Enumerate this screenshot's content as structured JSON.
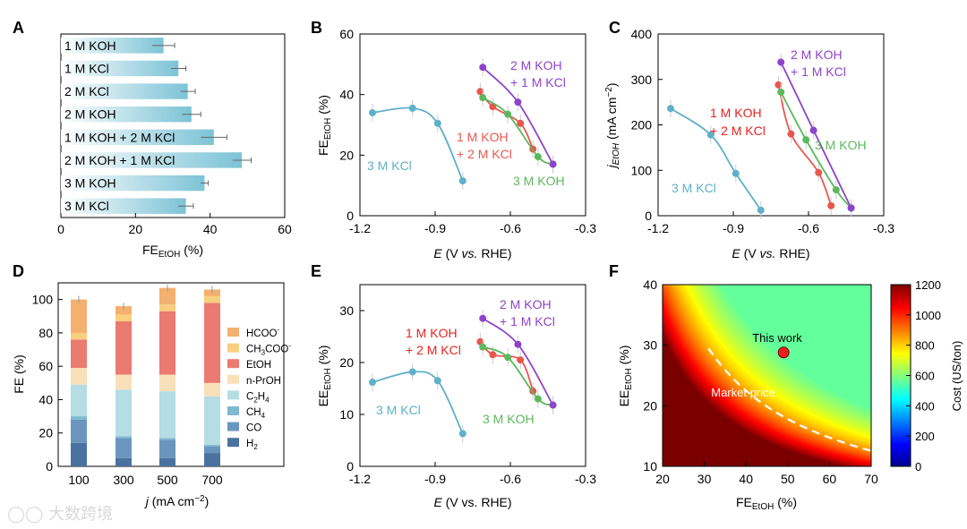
{
  "panels": {
    "A": {
      "letter": "A",
      "type": "bar",
      "categories": [
        "1 M KOH",
        "1 M KCl",
        "2 M KCl",
        "2 M KOH",
        "1 M KOH + 2 M KCl",
        "2 M KOH + 1 M KCl",
        "3 M KOH",
        "3 M KCl"
      ],
      "values": [
        27.5,
        31.5,
        34,
        35,
        41,
        48.5,
        38.5,
        33.5
      ],
      "errors": [
        3,
        2,
        2,
        2.5,
        3.5,
        2.5,
        1,
        2
      ],
      "xlim": [
        0,
        60
      ],
      "xticks": [
        "0",
        "20",
        "40",
        "60"
      ],
      "xlabel": "FE",
      "xlabel_sub": "EtOH",
      "xlabel_unit": " (%)"
    },
    "B": {
      "letter": "B",
      "type": "line",
      "xlim": [
        -1.2,
        -0.3
      ],
      "ylim": [
        0,
        60
      ],
      "xticks": [
        "-1.2",
        "-0.9",
        "-0.6",
        "-0.3"
      ],
      "yticks": [
        "0",
        "20",
        "40",
        "60"
      ],
      "ylabel": "FE",
      "ylabel_sub": "EtOH",
      "ylabel_unit": " (%)",
      "xlabel_e": "E",
      "xlabel_rest": " (V ",
      "xlabel_vs": "vs.",
      "xlabel_end": " RHE)",
      "series": [
        {
          "name": "3 M KCl",
          "color": "#5fb0c9",
          "x": [
            -1.15,
            -0.99,
            -0.89,
            -0.79
          ],
          "y": [
            34,
            35.5,
            30.5,
            11.5
          ]
        },
        {
          "name": "1 M KOH + 2 M KCl",
          "color": "#e8574e",
          "x": [
            -0.72,
            -0.67,
            -0.56,
            -0.51
          ],
          "y": [
            41,
            36,
            30.5,
            22
          ]
        },
        {
          "name": "3 M KOH",
          "color": "#5cb85c",
          "x": [
            -0.71,
            -0.61,
            -0.49,
            -0.43
          ],
          "y": [
            39,
            33.5,
            19.5,
            17
          ]
        },
        {
          "name": "2 M KOH + 1 M KCl",
          "color": "#8e44c9",
          "x": [
            -0.71,
            -0.57,
            -0.43
          ],
          "y": [
            49,
            37.5,
            17
          ]
        }
      ],
      "labels": {
        "kcl": "3 M KCl",
        "mix1a": "1 M KOH",
        "mix1b": "+ 2 M KCl",
        "koh": "3 M KOH",
        "mix2a": "2 M KOH",
        "mix2b": "+ 1 M KCl"
      }
    },
    "C": {
      "letter": "C",
      "type": "line",
      "xlim": [
        -1.2,
        -0.3
      ],
      "ylim": [
        0,
        400
      ],
      "xticks": [
        "-1.2",
        "-0.9",
        "-0.6",
        "-0.3"
      ],
      "yticks": [
        "0",
        "100",
        "200",
        "300",
        "400"
      ],
      "ylabel_j": "j",
      "ylabel_sub": "EtOH",
      "ylabel_unit": " (mA cm",
      "ylabel_sup": "−2",
      "ylabel_end": ")",
      "xlabel_e": "E",
      "xlabel_rest": " (V ",
      "xlabel_vs": "vs.",
      "xlabel_end": " RHE)",
      "series": [
        {
          "name": "3 M KCl",
          "color": "#5fb0c9",
          "x": [
            -1.15,
            -0.99,
            -0.89,
            -0.79
          ],
          "y": [
            236,
            178,
            93,
            12
          ]
        },
        {
          "name": "1 M KOH + 2 M KCl",
          "color": "#e8574e",
          "x": [
            -0.72,
            -0.67,
            -0.56,
            -0.51
          ],
          "y": [
            288,
            180,
            95,
            22
          ]
        },
        {
          "name": "3 M KOH",
          "color": "#5cb85c",
          "x": [
            -0.71,
            -0.61,
            -0.49,
            -0.43
          ],
          "y": [
            272,
            167,
            57,
            17
          ]
        },
        {
          "name": "2 M KOH + 1 M KCl",
          "color": "#8e44c9",
          "x": [
            -0.71,
            -0.58,
            -0.43
          ],
          "y": [
            338,
            188,
            17
          ]
        }
      ],
      "labels": {
        "kcl": "3 M KCl",
        "mix1a": "1 M KOH",
        "mix1b": "+ 2 M KCl",
        "koh": "3 M KOH",
        "mix2a": "2 M KOH",
        "mix2b": "+ 1 M KCl"
      }
    },
    "D": {
      "letter": "D",
      "type": "bar",
      "categories": [
        "100",
        "300",
        "500",
        "700"
      ],
      "ylim": [
        0,
        110
      ],
      "yticks": [
        "0",
        "20",
        "40",
        "60",
        "80",
        "100"
      ],
      "ylabel": "FE (%)",
      "xlabel_j": "j",
      "xlabel_rest": " (mA cm",
      "xlabel_sup": "−2",
      "xlabel_end": ")",
      "stack": [
        {
          "name": "H2",
          "legend": "H",
          "legend_sub": "2",
          "color": "#4a72a0",
          "values": [
            14,
            5,
            5,
            8
          ]
        },
        {
          "name": "CO",
          "legend": "CO",
          "legend_sub": "",
          "color": "#6a96bd",
          "values": [
            14,
            12,
            11,
            4
          ]
        },
        {
          "name": "CH4",
          "legend": "CH",
          "legend_sub": "4",
          "color": "#7fb9d0",
          "values": [
            2,
            1,
            1,
            1
          ]
        },
        {
          "name": "C2H4",
          "legend": "C",
          "legend_sub": "2",
          "legend_mid": "H",
          "legend_sub2": "4",
          "color": "#b4dde4",
          "values": [
            19,
            28,
            28,
            29
          ]
        },
        {
          "name": "n-PrOH",
          "legend": "n-PrOH",
          "legend_sub": "",
          "color": "#f8e0b8",
          "values": [
            10,
            9,
            10,
            8
          ]
        },
        {
          "name": "EtOH",
          "legend": "EtOH",
          "legend_sub": "",
          "color": "#eb7a70",
          "values": [
            17,
            32,
            38,
            48
          ]
        },
        {
          "name": "CH3COO-",
          "legend": "CH",
          "legend_sub": "3",
          "legend_mid": "COO",
          "legend_sup": "-",
          "color": "#f8cf7e",
          "values": [
            4,
            4,
            4,
            4
          ]
        },
        {
          "name": "HCOO-",
          "legend": "HCOO",
          "legend_sup": "-",
          "color": "#f4b06e",
          "values": [
            20,
            5,
            10,
            4
          ]
        }
      ],
      "totals": [
        100,
        96,
        107,
        106
      ]
    },
    "E": {
      "letter": "E",
      "type": "line",
      "xlim": [
        -1.2,
        -0.3
      ],
      "ylim": [
        0,
        35
      ],
      "xticks": [
        "-1.2",
        "-0.9",
        "-0.6",
        "-0.3"
      ],
      "yticks": [
        "0",
        "10",
        "20",
        "30"
      ],
      "ylabel": "EE",
      "ylabel_sub": "EtOH",
      "ylabel_unit": " (%)",
      "xlabel_e": "E",
      "xlabel_rest": " (V vs. RHE)",
      "series": [
        {
          "name": "3 M KCl",
          "color": "#5fb0c9",
          "x": [
            -1.15,
            -0.99,
            -0.89,
            -0.79
          ],
          "y": [
            16.2,
            18.2,
            16.5,
            6.3
          ]
        },
        {
          "name": "1 M KOH + 2 M KCl",
          "color": "#e8574e",
          "x": [
            -0.72,
            -0.67,
            -0.56,
            -0.51
          ],
          "y": [
            24,
            21.5,
            20.5,
            14.5
          ]
        },
        {
          "name": "3 M KOH",
          "color": "#5cb85c",
          "x": [
            -0.71,
            -0.61,
            -0.49,
            -0.43
          ],
          "y": [
            23,
            21,
            13,
            11.8
          ]
        },
        {
          "name": "2 M KOH + 1 M KCl",
          "color": "#8e44c9",
          "x": [
            -0.71,
            -0.57,
            -0.43
          ],
          "y": [
            28.5,
            23.5,
            11.8
          ]
        }
      ],
      "labels": {
        "kcl": "3 M KCl",
        "mix1a": "1 M KOH",
        "mix1b": "+ 2 M KCl",
        "koh": "3 M KOH",
        "mix2a": "2 M KOH",
        "mix2b": "+ 1 M KCl"
      }
    },
    "F": {
      "letter": "F",
      "type": "heatmap",
      "xlim": [
        20,
        70
      ],
      "ylim": [
        10,
        40
      ],
      "xticks": [
        "20",
        "30",
        "40",
        "50",
        "60",
        "70"
      ],
      "yticks": [
        "10",
        "20",
        "30",
        "40"
      ],
      "xlabel": "FE",
      "xlabel_sub": "EtOH",
      "xlabel_unit": " (%)",
      "ylabel": "EE",
      "ylabel_sub": "EtOH",
      "ylabel_unit": " (%)",
      "colorbar_range": [
        0,
        1200
      ],
      "colorbar_ticks": [
        "0",
        "200",
        "400",
        "600",
        "800",
        "1000",
        "1200"
      ],
      "colorbar_label": "Cost (US/ton)",
      "point": {
        "label": "This work",
        "x": 49,
        "y": 28.8,
        "color": "#e8221f"
      },
      "market_label": "Market price",
      "market_curve_constant": 855
    }
  }
}
